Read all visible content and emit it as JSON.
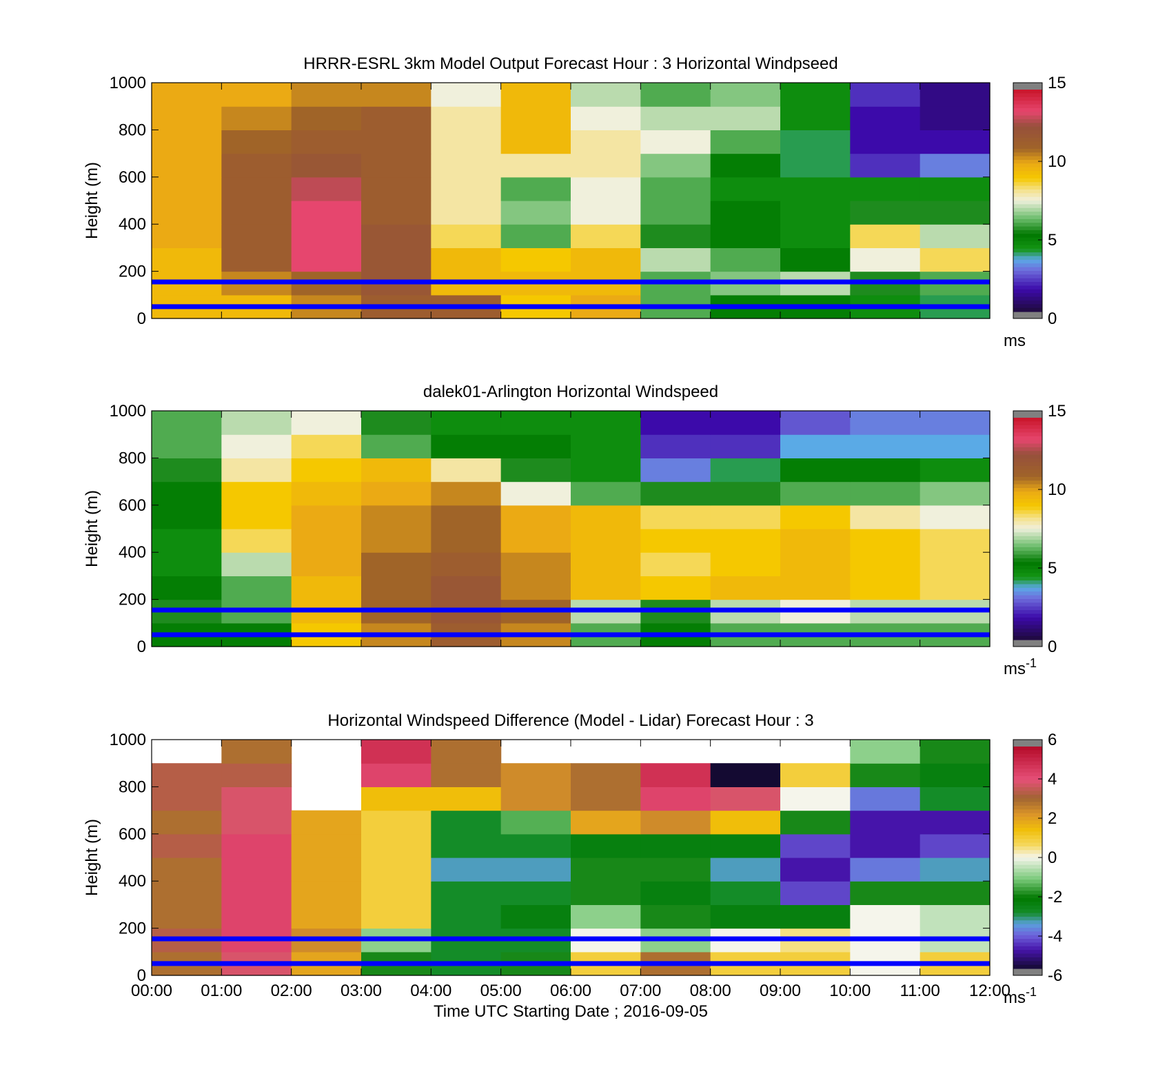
{
  "chart_data": [
    {
      "type": "heatmap",
      "title": "HRRR-ESRL 3km Model Output   Forecast Hour : 3 Horizontal Windpseed",
      "ylabel": "Height (m)",
      "xlabel": "",
      "ylim": [
        0,
        1000
      ],
      "xlim": [
        "00:00",
        "12:00"
      ],
      "y_ticks": [
        "0",
        "200",
        "400",
        "600",
        "800",
        "1000"
      ],
      "x_ticks": [
        "",
        "",
        "",
        "",
        "",
        "",
        "",
        "",
        "",
        "",
        "",
        "",
        ""
      ],
      "colorbar": {
        "range": [
          0,
          15
        ],
        "ticks": [
          "0",
          "5",
          "10",
          "15"
        ],
        "unit": "ms",
        "unit_sup": ""
      },
      "reference_lines_height_m": [
        50,
        155
      ],
      "column_width_hours": 1,
      "row_height_m": 100,
      "values_ms": [
        [
          9.5,
          9.5,
          10.5,
          11.5,
          11.5,
          9,
          10,
          6,
          5,
          5,
          4.5,
          4
        ],
        [
          9.5,
          10.5,
          11,
          12,
          9.5,
          9.5,
          9.5,
          6,
          6.5,
          7,
          5.5,
          6
        ],
        [
          9.5,
          11.5,
          13.5,
          12,
          9.5,
          9,
          9.5,
          7,
          6,
          5,
          7.5,
          8.5
        ],
        [
          10,
          11.5,
          13.5,
          12,
          8.5,
          6,
          8.5,
          5.5,
          5,
          4.5,
          8.5,
          7
        ],
        [
          10,
          11.5,
          13.5,
          11.5,
          8,
          6.5,
          7.5,
          6,
          5,
          4.5,
          5.5,
          5.5
        ],
        [
          10,
          11.5,
          13,
          11.5,
          8,
          6,
          7.5,
          6,
          4.5,
          4.5,
          4.5,
          4.5
        ],
        [
          10,
          11.5,
          12,
          11.5,
          8,
          8,
          8,
          6.5,
          5,
          4,
          2,
          3
        ],
        [
          10,
          11,
          11.5,
          11.5,
          8,
          9.5,
          8,
          7.5,
          6,
          4,
          1.5,
          1.5
        ],
        [
          10,
          10.5,
          11,
          11.5,
          8,
          9.5,
          7.5,
          7,
          7,
          4.5,
          1.5,
          1
        ],
        [
          10,
          10,
          10.5,
          10.5,
          7.5,
          9.5,
          7,
          6,
          6.5,
          4.5,
          2,
          1
        ]
      ]
    },
    {
      "type": "heatmap",
      "title": "dalek01-Arlington  Horizontal Windspeed",
      "ylabel": "Height (m)",
      "xlabel": "",
      "ylim": [
        0,
        1000
      ],
      "xlim": [
        "00:00",
        "12:00"
      ],
      "y_ticks": [
        "0",
        "200",
        "400",
        "600",
        "800",
        "1000"
      ],
      "x_ticks": [
        "",
        "",
        "",
        "",
        "",
        "",
        "",
        "",
        "",
        "",
        "",
        "",
        ""
      ],
      "colorbar": {
        "range": [
          0,
          15
        ],
        "ticks": [
          "0",
          "5",
          "10",
          "15"
        ],
        "unit": "ms",
        "unit_sup": "-1"
      },
      "reference_lines_height_m": [
        50,
        155
      ],
      "column_width_hours": 1,
      "row_height_m": 100,
      "values_ms": [
        [
          5,
          5,
          9,
          10.5,
          11.5,
          10.5,
          6,
          5,
          6,
          6,
          6,
          6
        ],
        [
          5.5,
          6,
          9.5,
          11,
          12,
          11,
          7,
          5.5,
          7,
          7.5,
          7,
          7
        ],
        [
          5,
          6,
          9.5,
          11,
          12,
          10.5,
          9.5,
          9,
          9.5,
          9.5,
          9,
          8.5
        ],
        [
          4.5,
          7,
          10,
          11,
          11.5,
          10.5,
          9.5,
          8.5,
          9,
          9.5,
          9,
          8.5
        ],
        [
          4.5,
          8.5,
          10,
          10.5,
          11,
          10,
          9.5,
          9,
          9,
          9.5,
          9,
          8.5
        ],
        [
          5,
          9,
          10,
          10.5,
          11,
          10,
          9.5,
          8.5,
          8.5,
          9,
          8,
          7.5
        ],
        [
          5,
          9,
          9.5,
          10,
          10.5,
          7.5,
          6,
          5.5,
          5.5,
          6,
          6,
          6.5
        ],
        [
          5.5,
          8,
          9,
          9.5,
          8,
          5.5,
          4.5,
          3,
          4,
          5,
          5,
          4.5
        ],
        [
          6,
          7.5,
          8.5,
          6,
          5,
          5,
          4.5,
          2,
          2,
          3.5,
          3.5,
          3.5
        ],
        [
          6,
          7,
          7.5,
          5.5,
          4.5,
          4.5,
          4.5,
          1.5,
          1.5,
          2.5,
          3,
          3
        ]
      ]
    },
    {
      "type": "heatmap",
      "title": "Horizontal Windspeed Difference (Model - Lidar) Forecast Hour : 3",
      "ylabel": "Height (m)",
      "xlabel": "Time UTC  Starting Date ; 2016-09-05",
      "ylim": [
        0,
        1000
      ],
      "xlim": [
        "00:00",
        "12:00"
      ],
      "y_ticks": [
        "0",
        "200",
        "400",
        "600",
        "800",
        "1000"
      ],
      "x_ticks": [
        "00:00",
        "01:00",
        "02:00",
        "03:00",
        "04:00",
        "05:00",
        "06:00",
        "07:00",
        "08:00",
        "09:00",
        "10:00",
        "11:00",
        "12:00"
      ],
      "colorbar": {
        "range": [
          -6,
          6
        ],
        "ticks": [
          "-6",
          "-4",
          "-2",
          "0",
          "2",
          "4",
          "6"
        ],
        "unit": "ms",
        "unit_sup": "-1"
      },
      "reference_lines_height_m": [
        50,
        155
      ],
      "column_width_hours": 1,
      "row_height_m": 100,
      "values_ms": [
        [
          3,
          4,
          2,
          -2,
          -3,
          -2,
          1,
          3,
          1,
          1,
          0,
          1
        ],
        [
          3.5,
          4.5,
          2.5,
          -1,
          -3,
          -3,
          0,
          -1,
          0,
          0.5,
          0,
          -0.5
        ],
        [
          3,
          4.5,
          2,
          1,
          -3,
          -2.5,
          -1,
          -2,
          -2.5,
          -2.5,
          0,
          -0.5
        ],
        [
          3,
          4.5,
          2,
          1,
          -3,
          -3,
          -2,
          -2.5,
          -3,
          -4.5,
          -2,
          -2
        ],
        [
          3,
          4.5,
          2,
          1,
          -3.5,
          -3.5,
          -2,
          -2,
          -3.5,
          -5,
          -4,
          -3.5
        ],
        [
          3.5,
          4.5,
          2,
          1,
          -3,
          -3,
          -2.5,
          -2.5,
          -2.5,
          -4.5,
          -5,
          -4.5
        ],
        [
          3,
          4,
          2,
          1,
          -3,
          -1.5,
          2,
          2.5,
          1.5,
          -2,
          -5,
          -5
        ],
        [
          3.5,
          4,
          null,
          1.5,
          1.5,
          2.5,
          3,
          4.5,
          4,
          0,
          -4,
          -3
        ],
        [
          3.5,
          3.5,
          null,
          4.5,
          3,
          2.5,
          3,
          5,
          -6,
          1,
          -2,
          -2.5
        ],
        [
          null,
          3,
          null,
          5,
          3,
          null,
          null,
          null,
          null,
          null,
          -1,
          -2
        ]
      ]
    }
  ]
}
